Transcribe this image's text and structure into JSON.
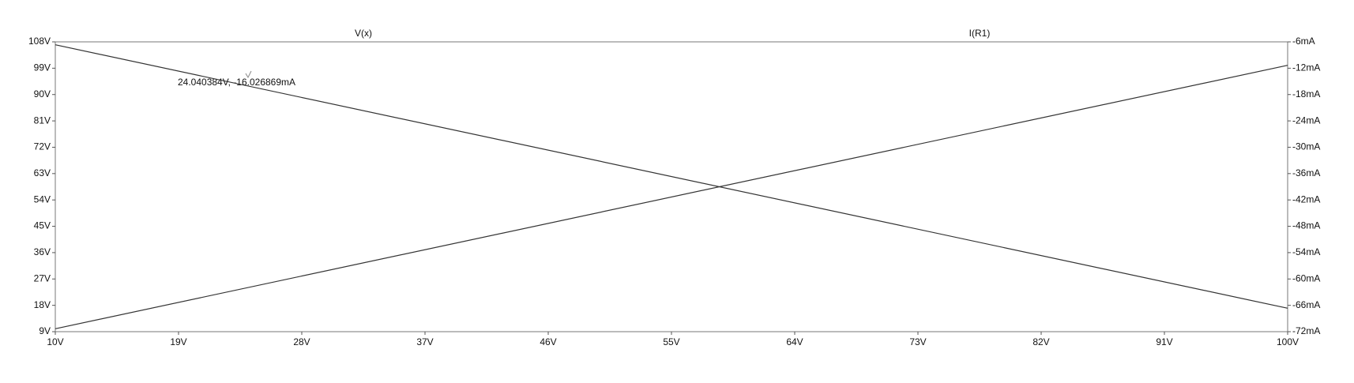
{
  "chart_data": {
    "type": "line",
    "x": [
      10,
      100
    ],
    "series": [
      {
        "name": "V(x)",
        "color": "#333333",
        "values": [
          10,
          100
        ]
      },
      {
        "name": "I(R1)",
        "color": "#333333",
        "values": [
          -6.6666667,
          -66.666667
        ],
        "axis": "y2"
      }
    ],
    "annotation": "24.040384V, -16.026869mA",
    "xlim": [
      10,
      100
    ],
    "xticks": [
      {
        "value": 10,
        "label": "10V"
      },
      {
        "value": 19,
        "label": "19V"
      },
      {
        "value": 28,
        "label": "28V"
      },
      {
        "value": 37,
        "label": "37V"
      },
      {
        "value": 46,
        "label": "46V"
      },
      {
        "value": 55,
        "label": "55V"
      },
      {
        "value": 64,
        "label": "64V"
      },
      {
        "value": 73,
        "label": "73V"
      },
      {
        "value": 82,
        "label": "82V"
      },
      {
        "value": 91,
        "label": "91V"
      },
      {
        "value": 100,
        "label": "100V"
      }
    ],
    "ylim": [
      9,
      108
    ],
    "yticks": [
      {
        "value": 9,
        "label": "9V"
      },
      {
        "value": 18,
        "label": "18V"
      },
      {
        "value": 27,
        "label": "27V"
      },
      {
        "value": 36,
        "label": "36V"
      },
      {
        "value": 45,
        "label": "45V"
      },
      {
        "value": 54,
        "label": "54V"
      },
      {
        "value": 63,
        "label": "63V"
      },
      {
        "value": 72,
        "label": "72V"
      },
      {
        "value": 81,
        "label": "81V"
      },
      {
        "value": 90,
        "label": "90V"
      },
      {
        "value": 99,
        "label": "99V"
      },
      {
        "value": 108,
        "label": "108V"
      }
    ],
    "y2lim": [
      -72,
      -6
    ],
    "y2ticks": [
      {
        "value": -72,
        "label": "-72mA"
      },
      {
        "value": -66,
        "label": "-66mA"
      },
      {
        "value": -60,
        "label": "-60mA"
      },
      {
        "value": -54,
        "label": "-54mA"
      },
      {
        "value": -48,
        "label": "-48mA"
      },
      {
        "value": -42,
        "label": "-42mA"
      },
      {
        "value": -36,
        "label": "-36mA"
      },
      {
        "value": -30,
        "label": "-30mA"
      },
      {
        "value": -24,
        "label": "-24mA"
      },
      {
        "value": -18,
        "label": "-18mA"
      },
      {
        "value": -12,
        "label": "-12mA"
      },
      {
        "value": -6,
        "label": "-6mA"
      }
    ],
    "grid": false
  }
}
